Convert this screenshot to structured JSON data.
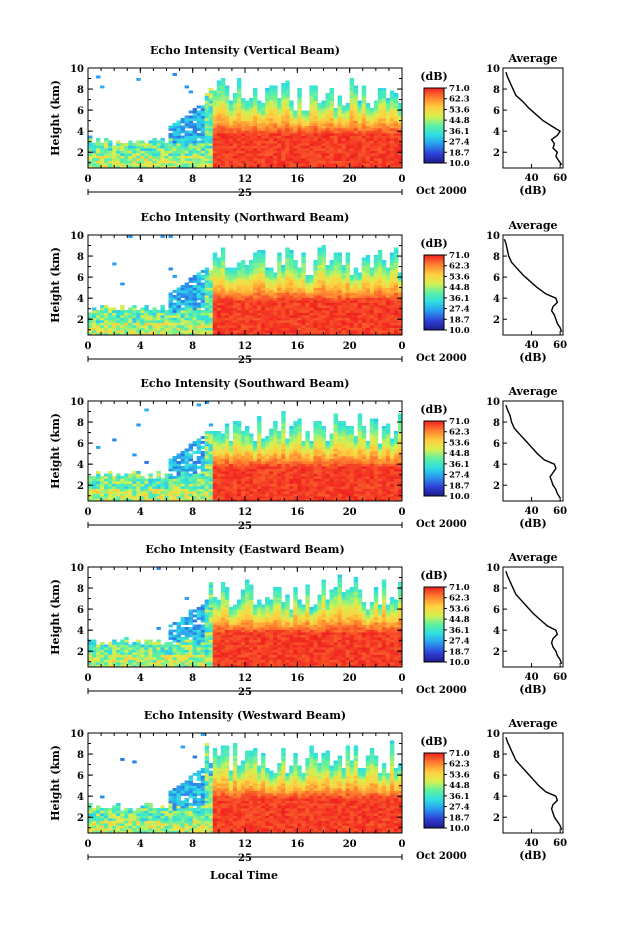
{
  "figure": {
    "xaxis_title": "Local Time",
    "date_label": "Oct 2000",
    "day_label": "25"
  },
  "chart_data": [
    {
      "type": "heatmap",
      "title": "Echo Intensity (Vertical Beam)",
      "xlabel": "",
      "ylabel": "Height (km)",
      "xlim": [
        0,
        24
      ],
      "ylim": [
        0.5,
        10
      ],
      "xticks": [
        "0",
        "4",
        "8",
        "12",
        "16",
        "20",
        "0"
      ],
      "yticks": [
        "2",
        "4",
        "6",
        "8",
        "10"
      ],
      "colorbar": {
        "label": "(dB)",
        "ticks": [
          "71.0",
          "62.3",
          "53.6",
          "44.8",
          "36.1",
          "27.4",
          "18.7",
          "10.0"
        ],
        "range": [
          10,
          71
        ]
      },
      "profile": {
        "title": "Average",
        "xlabel": "(dB)",
        "xticks": [
          "40",
          "60"
        ],
        "xlim": [
          20,
          62
        ],
        "ylim": [
          0.5,
          10
        ],
        "heights": [
          0.8,
          1.2,
          1.6,
          2.0,
          2.4,
          2.8,
          3.2,
          3.6,
          4.0,
          4.4,
          5.0,
          5.6,
          6.2,
          6.8,
          7.4,
          8.0,
          8.6,
          9.2,
          9.6
        ],
        "values": [
          61,
          59,
          57,
          58,
          55,
          56,
          54,
          58,
          60,
          55,
          48,
          43,
          38,
          34,
          29,
          27,
          25,
          23,
          22
        ]
      }
    },
    {
      "type": "heatmap",
      "title": "Echo Intensity (Northward Beam)",
      "xlabel": "",
      "ylabel": "Height (km)",
      "xlim": [
        0,
        24
      ],
      "ylim": [
        0.5,
        10
      ],
      "xticks": [
        "0",
        "4",
        "8",
        "12",
        "16",
        "20",
        "0"
      ],
      "yticks": [
        "2",
        "4",
        "6",
        "8",
        "10"
      ],
      "colorbar": {
        "label": "(dB)",
        "ticks": [
          "71.0",
          "62.3",
          "53.6",
          "44.8",
          "36.1",
          "27.4",
          "18.7",
          "10.0"
        ],
        "range": [
          10,
          71
        ]
      },
      "profile": {
        "title": "Average",
        "xlabel": "(dB)",
        "xticks": [
          "40",
          "60"
        ],
        "xlim": [
          20,
          62
        ],
        "ylim": [
          0.5,
          10
        ],
        "heights": [
          0.8,
          1.2,
          1.6,
          2.0,
          2.4,
          2.8,
          3.2,
          3.6,
          4.0,
          4.4,
          5.0,
          5.6,
          6.2,
          6.8,
          7.4,
          8.0,
          8.6,
          9.2,
          9.6
        ],
        "values": [
          61,
          60,
          58,
          57,
          56,
          54,
          55,
          58,
          57,
          50,
          44,
          39,
          34,
          30,
          26,
          24,
          23,
          22,
          21
        ]
      }
    },
    {
      "type": "heatmap",
      "title": "Echo Intensity (Southward Beam)",
      "xlabel": "",
      "ylabel": "Height (km)",
      "xlim": [
        0,
        24
      ],
      "ylim": [
        0.5,
        10
      ],
      "xticks": [
        "0",
        "4",
        "8",
        "12",
        "16",
        "20",
        "0"
      ],
      "yticks": [
        "2",
        "4",
        "6",
        "8",
        "10"
      ],
      "colorbar": {
        "label": "(dB)",
        "ticks": [
          "71.0",
          "62.3",
          "53.6",
          "44.8",
          "36.1",
          "27.4",
          "18.7",
          "10.0"
        ],
        "range": [
          10,
          71
        ]
      },
      "profile": {
        "title": "Average",
        "xlabel": "(dB)",
        "xticks": [
          "40",
          "60"
        ],
        "xlim": [
          20,
          62
        ],
        "ylim": [
          0.5,
          10
        ],
        "heights": [
          0.8,
          1.2,
          1.6,
          2.0,
          2.4,
          2.8,
          3.2,
          3.6,
          4.0,
          4.4,
          5.0,
          5.6,
          6.2,
          6.8,
          7.4,
          8.0,
          8.6,
          9.2,
          9.6
        ],
        "values": [
          60,
          58,
          57,
          55,
          54,
          53,
          55,
          57,
          56,
          49,
          44,
          40,
          36,
          32,
          28,
          26,
          25,
          23,
          22
        ]
      }
    },
    {
      "type": "heatmap",
      "title": "Echo Intensity (Eastward Beam)",
      "xlabel": "",
      "ylabel": "Height (km)",
      "xlim": [
        0,
        24
      ],
      "ylim": [
        0.5,
        10
      ],
      "xticks": [
        "0",
        "4",
        "8",
        "12",
        "16",
        "20",
        "0"
      ],
      "yticks": [
        "2",
        "4",
        "6",
        "8",
        "10"
      ],
      "colorbar": {
        "label": "(dB)",
        "ticks": [
          "71.0",
          "62.3",
          "53.6",
          "44.8",
          "36.1",
          "27.4",
          "18.7",
          "10.0"
        ],
        "range": [
          10,
          71
        ]
      },
      "profile": {
        "title": "Average",
        "xlabel": "(dB)",
        "xticks": [
          "40",
          "60"
        ],
        "xlim": [
          20,
          62
        ],
        "ylim": [
          0.5,
          10
        ],
        "heights": [
          0.8,
          1.2,
          1.6,
          2.0,
          2.4,
          2.8,
          3.2,
          3.6,
          4.0,
          4.4,
          5.0,
          5.6,
          6.2,
          6.8,
          7.4,
          8.0,
          8.6,
          9.2,
          9.6
        ],
        "values": [
          61,
          60,
          58,
          57,
          55,
          54,
          55,
          58,
          57,
          51,
          46,
          41,
          37,
          33,
          29,
          27,
          25,
          23,
          22
        ]
      }
    },
    {
      "type": "heatmap",
      "title": "Echo Intensity (Westward Beam)",
      "xlabel": "",
      "ylabel": "Height (km)",
      "xlim": [
        0,
        24
      ],
      "ylim": [
        0.5,
        10
      ],
      "xticks": [
        "0",
        "4",
        "8",
        "12",
        "16",
        "20",
        "0"
      ],
      "yticks": [
        "2",
        "4",
        "6",
        "8",
        "10"
      ],
      "colorbar": {
        "label": "(dB)",
        "ticks": [
          "71.0",
          "62.3",
          "53.6",
          "44.8",
          "36.1",
          "27.4",
          "18.7",
          "10.0"
        ],
        "range": [
          10,
          71
        ]
      },
      "profile": {
        "title": "Average",
        "xlabel": "(dB)",
        "xticks": [
          "40",
          "60"
        ],
        "xlim": [
          20,
          62
        ],
        "ylim": [
          0.5,
          10
        ],
        "heights": [
          0.8,
          1.2,
          1.6,
          2.0,
          2.4,
          2.8,
          3.2,
          3.6,
          4.0,
          4.4,
          5.0,
          5.6,
          6.2,
          6.8,
          7.4,
          8.0,
          8.6,
          9.2,
          9.6
        ],
        "values": [
          61,
          60,
          58,
          56,
          55,
          54,
          55,
          58,
          57,
          50,
          45,
          41,
          37,
          33,
          29,
          27,
          25,
          23,
          22
        ]
      }
    }
  ]
}
